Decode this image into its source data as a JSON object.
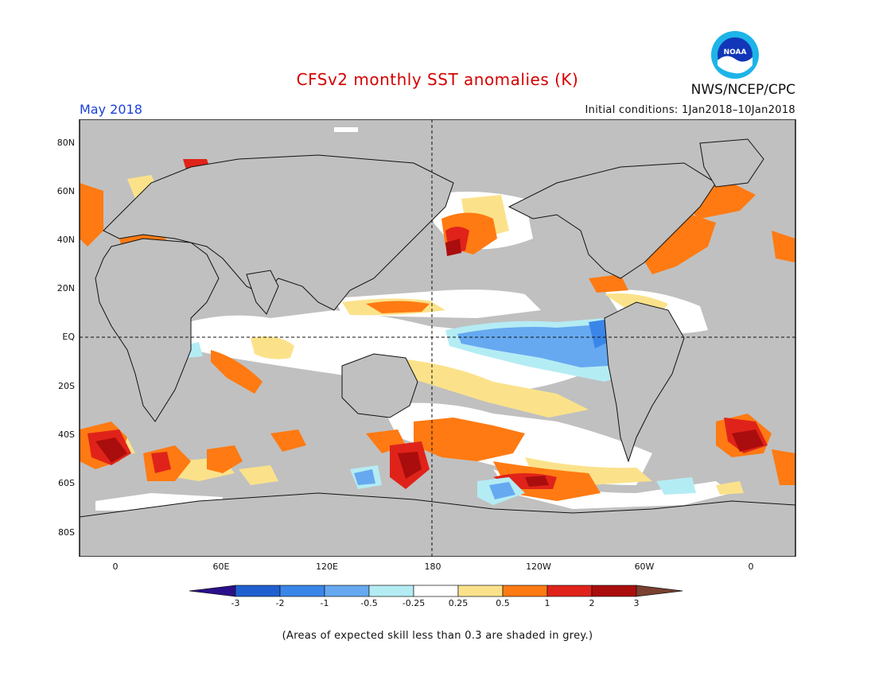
{
  "header": {
    "title": "CFSv2 monthly SST anomalies (K)",
    "month": "May 2018",
    "initial_conditions": "Initial conditions: 1Jan2018–10Jan2018",
    "agency": "NWS/NCEP/CPC",
    "logo_text": "NOAA"
  },
  "map": {
    "lat_labels": [
      "80N",
      "60N",
      "40N",
      "20N",
      "EQ",
      "20S",
      "40S",
      "60S",
      "80S"
    ],
    "lon_labels": [
      "0",
      "60E",
      "120E",
      "180",
      "120W",
      "60W",
      "0"
    ],
    "colors": {
      "land": "#c0c0c0",
      "ocean_neutral": "#ffffff",
      "coast": "#111111"
    }
  },
  "colorbar": {
    "labels": [
      "-3",
      "-2",
      "-1",
      "-0.5",
      "-0.25",
      "0.25",
      "0.5",
      "1",
      "2",
      "3"
    ],
    "colors": [
      "#2a0f8a",
      "#1f5fd0",
      "#3a86e8",
      "#66a9f0",
      "#b4ecf4",
      "#ffffff",
      "#fbe28a",
      "#ff7a12",
      "#e0231a",
      "#aa0d0d",
      "#7a4030"
    ]
  },
  "footer": {
    "note": "(Areas of expected skill less than 0.3 are shaded in grey.)"
  }
}
